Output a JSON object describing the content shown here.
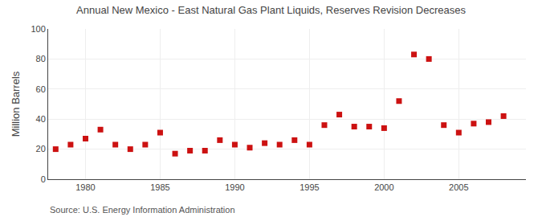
{
  "chart_data": {
    "type": "scatter",
    "title": "Annual New Mexico - East Natural Gas Plant Liquids, Reserves Revision Decreases",
    "y_label": "Million Barrels",
    "annotations": [
      "Source: U.S. Energy Information Administration"
    ],
    "x": [
      1978,
      1979,
      1980,
      1981,
      1982,
      1983,
      1984,
      1985,
      1986,
      1987,
      1988,
      1989,
      1990,
      1991,
      1992,
      1993,
      1994,
      1995,
      1996,
      1997,
      1998,
      1999,
      2000,
      2001,
      2002,
      2003,
      2004,
      2005,
      2006,
      2007,
      2008
    ],
    "values": [
      20,
      23,
      27,
      33,
      23,
      20,
      23,
      31,
      17,
      19,
      19,
      26,
      23,
      21,
      24,
      23,
      26,
      23,
      36,
      43,
      35,
      35,
      34,
      52,
      83,
      80,
      36,
      31,
      37,
      38,
      42
    ],
    "color": "#cc1111",
    "marker": "square",
    "xlim": [
      1977.5,
      2009.5
    ],
    "ylim": [
      0,
      100
    ],
    "xticks": [
      1980,
      1985,
      1990,
      1995,
      2000,
      2005
    ],
    "yticks": [
      0,
      20,
      40,
      60,
      80,
      100
    ],
    "grid": true
  }
}
